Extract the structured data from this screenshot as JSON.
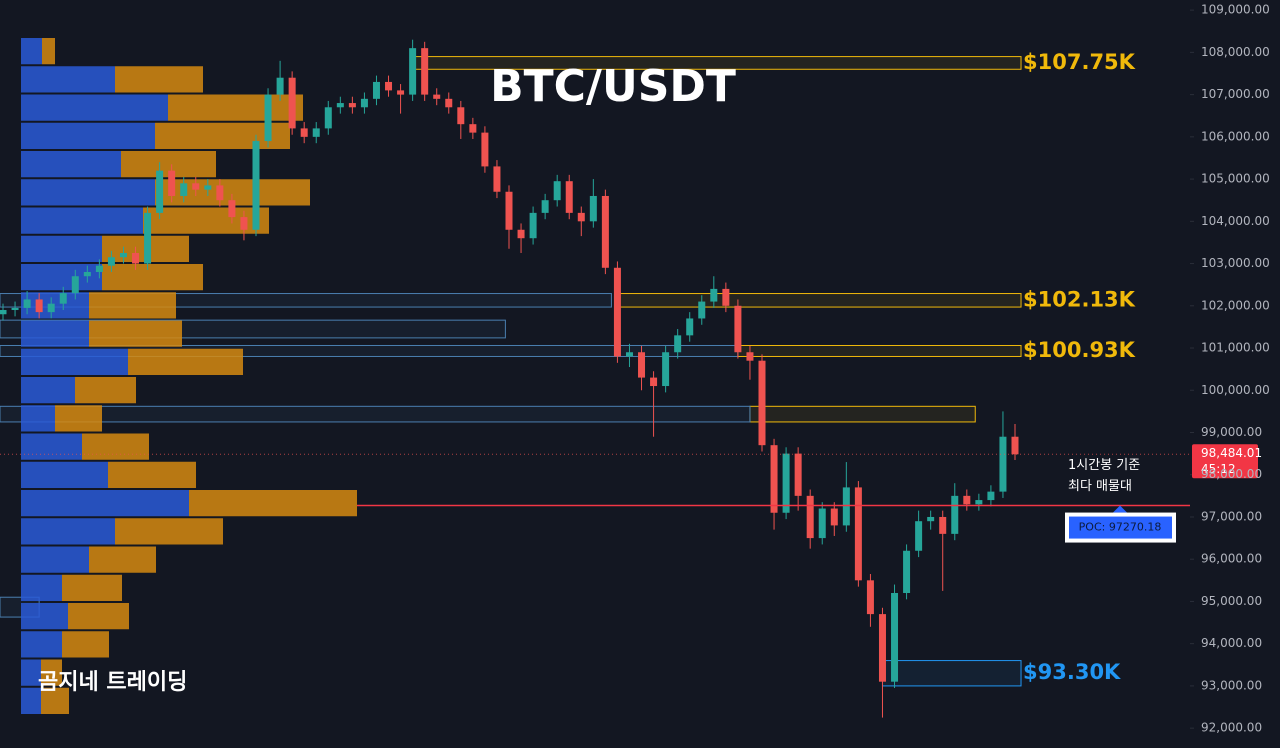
{
  "chart_data": {
    "type": "candlestick",
    "title": "BTC/USDT",
    "watermark": "곰지네 트레이딩",
    "up_color": "#26a69a",
    "down_color": "#ef5350",
    "ylim": [
      91530,
      109240
    ],
    "yticks": [
      {
        "value": 92000,
        "label": "92,000.00"
      },
      {
        "value": 93000,
        "label": "93,000.00"
      },
      {
        "value": 94000,
        "label": "94,000.00"
      },
      {
        "value": 95000,
        "label": "95,000.00"
      },
      {
        "value": 96000,
        "label": "96,000.00"
      },
      {
        "value": 97000,
        "label": "97,000.00"
      },
      {
        "value": 98000,
        "label": "98,000.00"
      },
      {
        "value": 99000,
        "label": "99,000.00"
      },
      {
        "value": 100000,
        "label": "100,000.00"
      },
      {
        "value": 101000,
        "label": "101,000.00"
      },
      {
        "value": 102000,
        "label": "102,000.00"
      },
      {
        "value": 103000,
        "label": "103,000.00"
      },
      {
        "value": 104000,
        "label": "104,000.00"
      },
      {
        "value": 105000,
        "label": "105,000.00"
      },
      {
        "value": 106000,
        "label": "106,000.00"
      },
      {
        "value": 107000,
        "label": "107,000.00"
      },
      {
        "value": 108000,
        "label": "108,000.00"
      },
      {
        "value": 109000,
        "label": "109,000.00"
      }
    ],
    "open": [
      101800,
      101900,
      101950,
      102150,
      101850,
      102050,
      102300,
      102700,
      102800,
      102950,
      103150,
      103250,
      103000,
      104200,
      105200,
      104600,
      104900,
      104750,
      104850,
      104500,
      104100,
      103800,
      105900,
      107000,
      107400,
      106200,
      106000,
      106200,
      106700,
      106800,
      106700,
      106900,
      107300,
      107100,
      107000,
      108100,
      107000,
      106900,
      106700,
      106300,
      106100,
      105300,
      104700,
      103800,
      103600,
      104200,
      104500,
      104950,
      104200,
      104000,
      104600,
      102900,
      100800,
      100900,
      100300,
      100100,
      100900,
      101300,
      101700,
      102100,
      102400,
      102000,
      100900,
      100700,
      98700,
      97100,
      98500,
      97500,
      96500,
      97200,
      96800,
      97700,
      95500,
      94700,
      93100,
      95200,
      96200,
      96900,
      97000,
      96600,
      97500,
      97300,
      97400,
      97600,
      98900
    ],
    "high": [
      102050,
      102100,
      102350,
      102300,
      102200,
      102450,
      102850,
      102950,
      103100,
      103300,
      103400,
      103400,
      104350,
      105400,
      105350,
      105050,
      105050,
      105000,
      105000,
      104650,
      104250,
      106050,
      107150,
      107800,
      107550,
      106350,
      106350,
      106850,
      106950,
      106950,
      107050,
      107450,
      107450,
      107250,
      108300,
      108250,
      107150,
      107050,
      106850,
      106450,
      106250,
      105450,
      104850,
      103950,
      104350,
      104650,
      105100,
      105100,
      104350,
      105000,
      104750,
      103050,
      101100,
      101050,
      100450,
      101050,
      101450,
      101850,
      102250,
      102700,
      102550,
      102150,
      101050,
      100850,
      98850,
      98650,
      98650,
      97650,
      97350,
      97350,
      98300,
      97850,
      95650,
      94850,
      95400,
      96350,
      97150,
      97150,
      97150,
      97800,
      97650,
      97550,
      97750,
      99500,
      99200
    ],
    "low": [
      101650,
      101750,
      101800,
      101700,
      101700,
      101900,
      102150,
      102550,
      102650,
      102800,
      103000,
      102850,
      102850,
      104050,
      104450,
      104450,
      104600,
      104600,
      104350,
      103950,
      103550,
      103650,
      105750,
      106850,
      106050,
      105850,
      105850,
      106050,
      106550,
      106550,
      106550,
      106750,
      106950,
      106550,
      106850,
      106850,
      106750,
      106550,
      105950,
      105950,
      105150,
      104550,
      103350,
      103250,
      103450,
      104050,
      104350,
      104050,
      103650,
      103850,
      102750,
      100650,
      100550,
      100000,
      98900,
      99950,
      100750,
      101150,
      101550,
      101950,
      101850,
      100750,
      100250,
      98550,
      96700,
      96950,
      97150,
      96250,
      96350,
      96550,
      96650,
      95350,
      94400,
      92250,
      92950,
      95050,
      96050,
      96700,
      95250,
      96450,
      97150,
      97150,
      97250,
      97450,
      98350
    ],
    "close": [
      101900,
      101950,
      102150,
      101850,
      102050,
      102300,
      102700,
      102800,
      102950,
      103150,
      103250,
      103000,
      104200,
      105200,
      104600,
      104900,
      104750,
      104850,
      104500,
      104100,
      103800,
      105900,
      107000,
      107400,
      106200,
      106000,
      106200,
      106700,
      106800,
      106700,
      106900,
      107300,
      107100,
      107000,
      108100,
      107000,
      106900,
      106700,
      106300,
      106100,
      105300,
      104700,
      103800,
      103600,
      104200,
      104500,
      104950,
      104200,
      104000,
      104600,
      102900,
      100800,
      100900,
      100300,
      100100,
      100900,
      101300,
      101700,
      102100,
      102400,
      102000,
      100900,
      100700,
      98700,
      97100,
      98500,
      97500,
      96500,
      97200,
      96800,
      97700,
      95500,
      94700,
      93100,
      95200,
      96200,
      96900,
      97000,
      96600,
      97500,
      97300,
      97400,
      97600,
      98900,
      98484.01
    ],
    "last_price_label": "98,484.01",
    "countdown": "45:12",
    "profile": {
      "buy_color": "#2a5bd7",
      "sell_color": "#d68a10",
      "buy": [
        21,
        94,
        147,
        134,
        100,
        134,
        122,
        81,
        81,
        68,
        68,
        107,
        54,
        34,
        61,
        87,
        168,
        94,
        68,
        41,
        47,
        41,
        20,
        20
      ],
      "sell": [
        13,
        88,
        135,
        135,
        95,
        155,
        126,
        87,
        101,
        87,
        93,
        115,
        61,
        47,
        67,
        88,
        168,
        108,
        67,
        60,
        61,
        47,
        21,
        28
      ]
    },
    "poc": {
      "value": 97270.18,
      "label": "POC: 97270.18",
      "color": "#f23645"
    },
    "poc_note": [
      "1시간봉 기준",
      "최다 매물대"
    ],
    "zones": [
      {
        "low": 107600,
        "high": 107900,
        "x": [
          34,
          84.5
        ],
        "color": "#f0b90b",
        "label": "$107.75K"
      },
      {
        "low": 101970,
        "high": 102290,
        "x": [
          51,
          84.5
        ],
        "color": "#f0b90b",
        "label": "$102.13K"
      },
      {
        "low": 100800,
        "high": 101060,
        "x": [
          61,
          84.5
        ],
        "color": "#f0b90b",
        "label": "$100.93K"
      },
      {
        "low": 99250,
        "high": 99620,
        "x": [
          62,
          80.7
        ],
        "color": "#f0b90b"
      },
      {
        "low": 93000,
        "high": 93600,
        "x": [
          73,
          84.5
        ],
        "color": "#2196f3",
        "label": "$93.30K"
      },
      {
        "low": 101970,
        "high": 102290,
        "x": [
          -0.25,
          50.5
        ],
        "color": "#4a7fb0"
      },
      {
        "low": 101240,
        "high": 101660,
        "x": [
          -0.25,
          41.7
        ],
        "color": "#4a7fb0"
      },
      {
        "low": 100800,
        "high": 101060,
        "x": [
          -0.25,
          61
        ],
        "color": "#4a7fb0"
      },
      {
        "low": 99250,
        "high": 99620,
        "x": [
          -0.25,
          62
        ],
        "color": "#4a7fb0"
      },
      {
        "low": 94630,
        "high": 95100,
        "x": [
          -0.25,
          3
        ],
        "color": "#4a7fb0"
      }
    ]
  }
}
